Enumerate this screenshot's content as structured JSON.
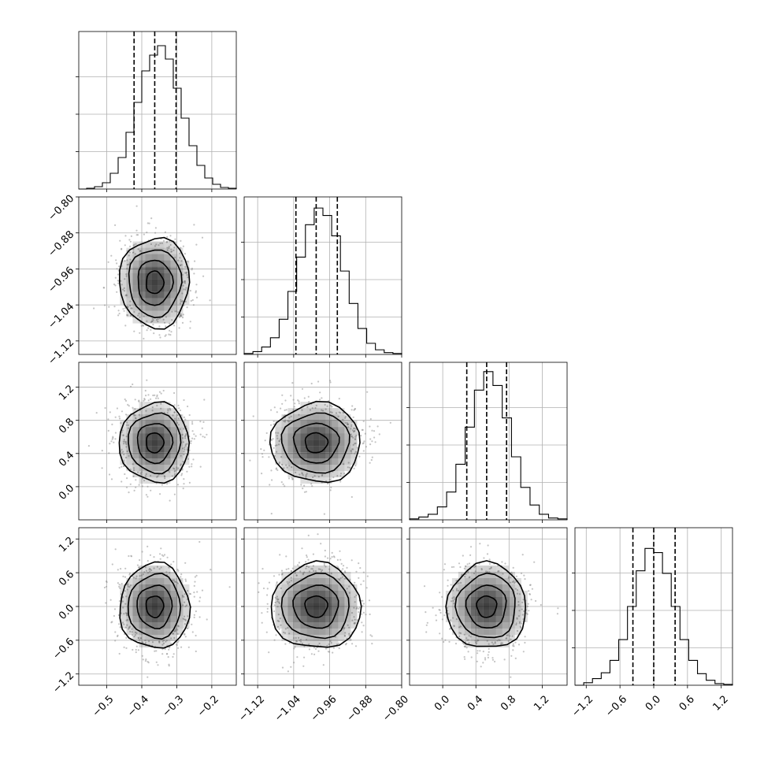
{
  "chart_data": {
    "type": "corner",
    "grid": true,
    "parameters": [
      {
        "index": 0,
        "range": [
          -0.58,
          -0.13
        ],
        "ticks": [
          -0.5,
          -0.4,
          -0.3,
          -0.2
        ],
        "tick_labels": [
          "−0.5",
          "−0.4",
          "−0.3",
          "−0.2"
        ],
        "quantiles": [
          -0.422,
          -0.363,
          -0.302
        ],
        "hist_bins": [
          0,
          1,
          3,
          8,
          20,
          40,
          72,
          110,
          150,
          170,
          182,
          165,
          128,
          90,
          55,
          30,
          14,
          6,
          2,
          1
        ],
        "hist_max": 200
      },
      {
        "index": 1,
        "range": [
          -1.15,
          -0.8
        ],
        "ticks": [
          -1.12,
          -1.04,
          -0.96,
          -0.88,
          -0.8
        ],
        "tick_labels": [
          "−1.12",
          "−1.04",
          "−0.96",
          "−0.88",
          "−0.80"
        ],
        "quantiles": [
          -1.035,
          -0.99,
          -0.943
        ],
        "hist_bins": [
          1,
          3,
          8,
          18,
          38,
          68,
          105,
          140,
          158,
          150,
          128,
          90,
          55,
          28,
          12,
          5,
          2,
          1
        ],
        "hist_max": 170
      },
      {
        "index": 2,
        "range": [
          -0.4,
          1.5
        ],
        "ticks": [
          0.0,
          0.4,
          0.8,
          1.2
        ],
        "tick_labels": [
          "0.0",
          "0.4",
          "0.8",
          "1.2"
        ],
        "quantiles": [
          0.29,
          0.53,
          0.77
        ],
        "hist_bins": [
          1,
          3,
          6,
          14,
          30,
          60,
          100,
          140,
          160,
          145,
          110,
          68,
          35,
          16,
          6,
          2,
          1
        ],
        "hist_max": 170
      },
      {
        "index": 3,
        "range": [
          -1.4,
          1.4
        ],
        "ticks": [
          -1.2,
          -0.6,
          0.0,
          0.6,
          1.2
        ],
        "tick_labels": [
          "−1.2",
          "−0.6",
          "0.0",
          "0.6",
          "1.2"
        ],
        "quantiles": [
          -0.37,
          0.0,
          0.38
        ],
        "hist_bins": [
          0,
          3,
          8,
          15,
          30,
          55,
          95,
          138,
          165,
          160,
          135,
          95,
          55,
          30,
          14,
          6,
          2,
          1
        ],
        "hist_max": 190
      }
    ],
    "y_axis_labels": {
      "1": [
        "−0.80",
        "−0.88",
        "−0.96",
        "−1.04",
        "−1.12"
      ],
      "2": [
        "1.2",
        "0.8",
        "0.4",
        "0.0"
      ],
      "3": [
        "1.2",
        "0.6",
        "0.0",
        "−0.6",
        "−1.2"
      ]
    },
    "pairs": [
      {
        "x_param": 0,
        "y_param": 1,
        "center": [
          -0.363,
          -0.99
        ],
        "sigma": [
          0.05,
          0.05
        ]
      },
      {
        "x_param": 0,
        "y_param": 2,
        "center": [
          -0.363,
          0.53
        ],
        "sigma": [
          0.05,
          0.24
        ]
      },
      {
        "x_param": 1,
        "y_param": 2,
        "center": [
          -0.99,
          0.53
        ],
        "sigma": [
          0.05,
          0.24
        ]
      },
      {
        "x_param": 0,
        "y_param": 3,
        "center": [
          -0.363,
          0.0
        ],
        "sigma": [
          0.05,
          0.38
        ]
      },
      {
        "x_param": 1,
        "y_param": 3,
        "center": [
          -0.99,
          0.0
        ],
        "sigma": [
          0.05,
          0.38
        ]
      },
      {
        "x_param": 2,
        "y_param": 3,
        "center": [
          0.53,
          0.0
        ],
        "sigma": [
          0.24,
          0.38
        ]
      }
    ],
    "contour_levels_sigma": [
      0.5,
      1.0,
      1.5,
      2.0
    ],
    "colors": {
      "density": "#000000",
      "points": "#8a8a8a",
      "lines": "#000000",
      "grid": "#b0b0b0"
    }
  }
}
